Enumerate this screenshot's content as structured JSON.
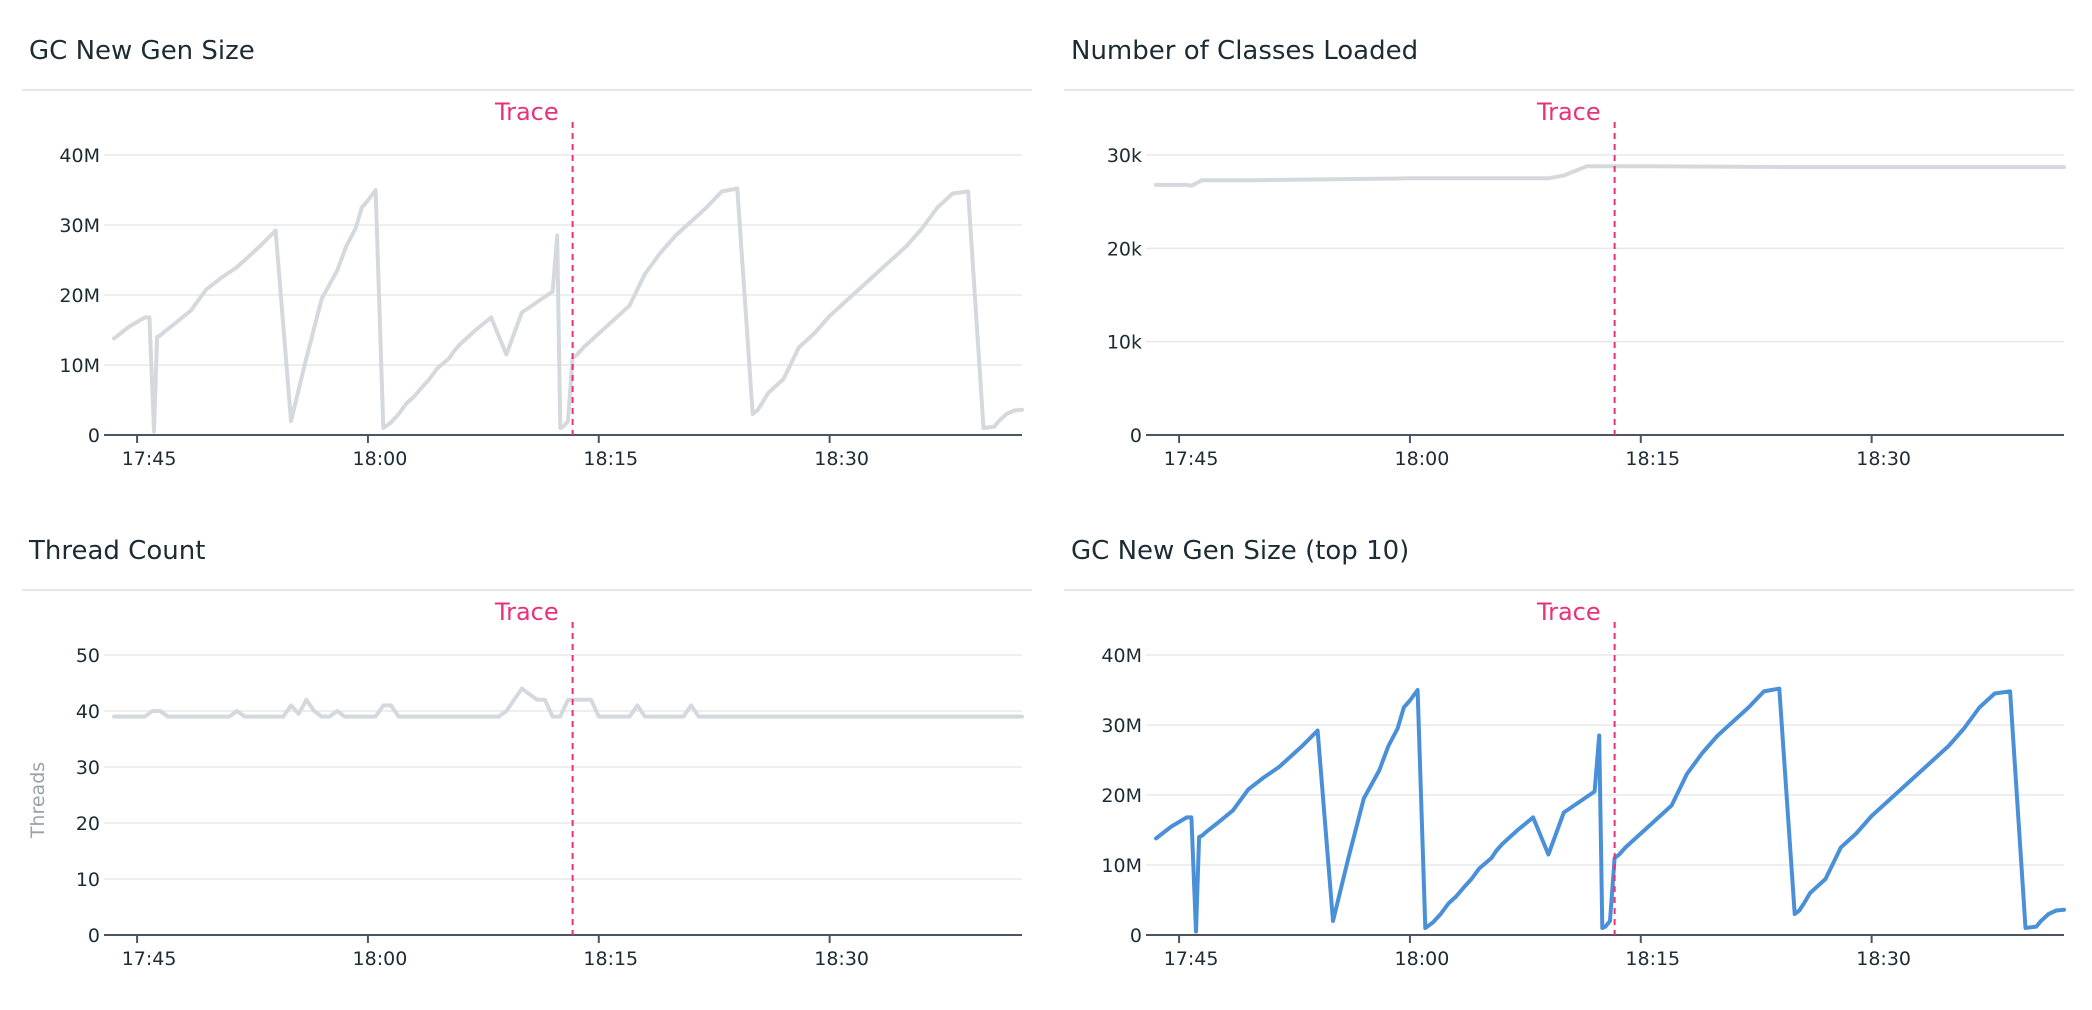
{
  "chart_data": [
    {
      "type": "line",
      "title": "GC New Gen Size",
      "ylabel": "",
      "yticks": [
        "0",
        "10M",
        "20M",
        "30M",
        "40M"
      ],
      "ylim": [
        0,
        40
      ],
      "xticks": [
        "17:45",
        "18:00",
        "18:15",
        "18:30"
      ],
      "xlim": [
        -1.5,
        57.5
      ],
      "trace": {
        "label": "Trace",
        "x": 28.3
      },
      "series": [
        {
          "color": "#d5d9dd",
          "x": [
            -1.5,
            -0.5,
            0.5,
            0.8,
            1.1,
            1.3,
            1.5,
            1.8,
            2.5,
            3.5,
            4.5,
            5.5,
            6.5,
            7,
            8,
            9,
            10,
            11,
            12,
            13,
            13.6,
            14.2,
            14.6,
            15,
            15.5,
            16,
            16.5,
            17,
            17.5,
            18,
            18.5,
            19,
            19.5,
            20.3,
            20.6,
            21,
            22,
            23,
            24,
            25,
            26,
            27,
            27.3,
            27.5,
            27.7,
            28,
            28.3,
            28.6,
            29,
            30,
            31,
            32,
            33,
            34,
            35,
            36,
            37,
            38,
            39,
            40,
            40.3,
            40.6,
            41,
            42,
            43,
            44,
            45,
            46,
            47,
            48,
            49,
            50,
            51,
            52,
            53,
            54,
            55,
            55.7,
            56,
            56.5,
            57,
            57.5
          ],
          "y": [
            13.8,
            15.5,
            16.8,
            16.8,
            0.5,
            14.0,
            14.2,
            14.8,
            16.0,
            17.8,
            20.8,
            22.5,
            24.0,
            25.0,
            27.0,
            29.2,
            2.0,
            11.0,
            19.5,
            23.5,
            27.0,
            29.5,
            32.5,
            33.5,
            35.0,
            1.0,
            1.8,
            3.0,
            4.5,
            5.5,
            6.8,
            8.0,
            9.5,
            11.0,
            12.0,
            13.0,
            15.0,
            16.8,
            11.5,
            17.5,
            19.0,
            20.5,
            28.5,
            1.0,
            1.2,
            2.0,
            11.0,
            11.5,
            12.5,
            14.5,
            16.5,
            18.5,
            23.0,
            26.0,
            28.5,
            30.5,
            32.5,
            34.8,
            35.2,
            3.0,
            3.5,
            4.5,
            6.0,
            8.0,
            12.5,
            14.5,
            17.0,
            19.0,
            21.0,
            23.0,
            25.0,
            27.0,
            29.5,
            32.5,
            34.5,
            34.8,
            1.0,
            1.2,
            2.0,
            3.0,
            3.5,
            3.6
          ]
        }
      ]
    },
    {
      "type": "line",
      "title": "Number of Classes Loaded",
      "ylabel": "",
      "yticks": [
        "0",
        "10k",
        "20k",
        "30k"
      ],
      "ylim": [
        0,
        30
      ],
      "xticks": [
        "17:45",
        "18:00",
        "18:15",
        "18:30"
      ],
      "xlim": [
        -1.5,
        57.5
      ],
      "trace": {
        "label": "Trace",
        "x": 28.3
      },
      "series": [
        {
          "color": "#d5d9dd",
          "x": [
            -1.5,
            0.5,
            0.8,
            1.5,
            5,
            10,
            15,
            20,
            24,
            25,
            26.5,
            30,
            40,
            50,
            57.5
          ],
          "y": [
            26.8,
            26.8,
            26.7,
            27.3,
            27.3,
            27.4,
            27.5,
            27.5,
            27.5,
            27.8,
            28.8,
            28.8,
            28.7,
            28.7,
            28.7
          ]
        }
      ]
    },
    {
      "type": "line",
      "title": "Thread Count",
      "ylabel": "Threads",
      "yticks": [
        "0",
        "10",
        "20",
        "30",
        "40",
        "50"
      ],
      "ylim": [
        0,
        50
      ],
      "xticks": [
        "17:45",
        "18:00",
        "18:15",
        "18:30"
      ],
      "xlim": [
        -1.5,
        57.5
      ],
      "trace": {
        "label": "Trace",
        "x": 28.3
      },
      "series": [
        {
          "color": "#d5d9dd",
          "x": [
            -1.5,
            0,
            0.5,
            1,
            1.5,
            2,
            6,
            6.5,
            7,
            9.5,
            10,
            10.5,
            11,
            11.5,
            12,
            12.5,
            13,
            13.5,
            14,
            14.5,
            15.5,
            16,
            16.5,
            17,
            23.5,
            24,
            24.5,
            25,
            25.5,
            26,
            26.5,
            27,
            27.5,
            28,
            28.5,
            29,
            29.5,
            30,
            32,
            32.5,
            33,
            33.5,
            34,
            35.5,
            36,
            36.5,
            40,
            50,
            57.5
          ],
          "y": [
            39,
            39,
            39,
            40,
            40,
            39,
            39,
            40,
            39,
            39,
            41,
            39.5,
            42,
            40,
            39,
            39,
            40,
            39,
            39,
            39,
            39,
            41,
            41,
            39,
            39,
            40,
            42,
            44,
            43,
            42,
            42,
            39,
            39,
            42,
            42,
            42,
            42,
            39,
            39,
            41,
            39,
            39,
            39,
            39,
            41,
            39,
            39,
            39,
            39
          ]
        }
      ]
    },
    {
      "type": "line",
      "title": "GC New Gen Size (top 10)",
      "ylabel": "",
      "yticks": [
        "0",
        "10M",
        "20M",
        "30M",
        "40M"
      ],
      "ylim": [
        0,
        40
      ],
      "xticks": [
        "17:45",
        "18:00",
        "18:15",
        "18:30"
      ],
      "xlim": [
        -1.5,
        57.5
      ],
      "trace": {
        "label": "Trace",
        "x": 28.3
      },
      "series": [
        {
          "color": "#4a90d9",
          "x": [
            -1.5,
            -0.5,
            0.5,
            0.8,
            1.1,
            1.3,
            1.5,
            1.8,
            2.5,
            3.5,
            4.5,
            5.5,
            6.5,
            7,
            8,
            9,
            10,
            11,
            12,
            13,
            13.6,
            14.2,
            14.6,
            15,
            15.5,
            16,
            16.5,
            17,
            17.5,
            18,
            18.5,
            19,
            19.5,
            20.3,
            20.6,
            21,
            22,
            23,
            24,
            25,
            26,
            27,
            27.3,
            27.5,
            27.7,
            28,
            28.3,
            28.6,
            29,
            30,
            31,
            32,
            33,
            34,
            35,
            36,
            37,
            38,
            39,
            40,
            40.3,
            40.6,
            41,
            42,
            43,
            44,
            45,
            46,
            47,
            48,
            49,
            50,
            51,
            52,
            53,
            54,
            55,
            55.7,
            56,
            56.5,
            57,
            57.5
          ],
          "y": [
            13.8,
            15.5,
            16.8,
            16.8,
            0.5,
            14.0,
            14.2,
            14.8,
            16.0,
            17.8,
            20.8,
            22.5,
            24.0,
            25.0,
            27.0,
            29.2,
            2.0,
            11.0,
            19.5,
            23.5,
            27.0,
            29.5,
            32.5,
            33.5,
            35.0,
            1.0,
            1.8,
            3.0,
            4.5,
            5.5,
            6.8,
            8.0,
            9.5,
            11.0,
            12.0,
            13.0,
            15.0,
            16.8,
            11.5,
            17.5,
            19.0,
            20.5,
            28.5,
            1.0,
            1.2,
            2.0,
            11.0,
            11.5,
            12.5,
            14.5,
            16.5,
            18.5,
            23.0,
            26.0,
            28.5,
            30.5,
            32.5,
            34.8,
            35.2,
            3.0,
            3.5,
            4.5,
            6.0,
            8.0,
            12.5,
            14.5,
            17.0,
            19.0,
            21.0,
            23.0,
            25.0,
            27.0,
            29.5,
            32.5,
            34.5,
            34.8,
            1.0,
            1.2,
            2.0,
            3.0,
            3.5,
            3.6
          ]
        }
      ]
    }
  ]
}
